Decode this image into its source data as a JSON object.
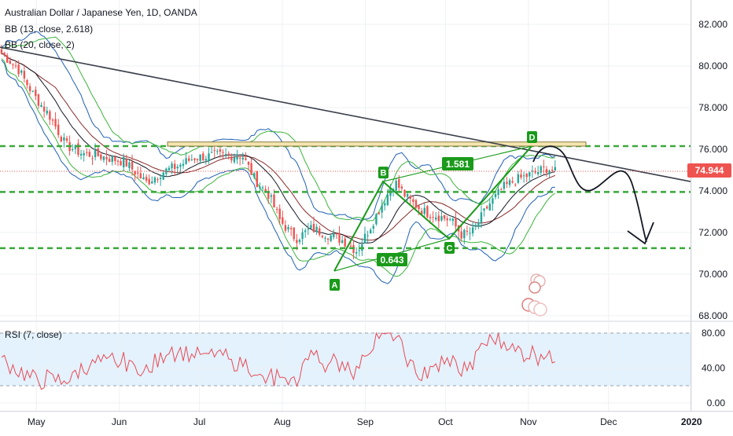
{
  "header": {
    "title": "Australian Dollar / Japanese Yen, 1D, OANDA",
    "bb1": "BB (13, close, 2.618)",
    "bb2": "BB (20, close, 2)"
  },
  "rsi": {
    "label": "RSI (7, close)"
  },
  "price": {
    "last": "74.944",
    "last_color": "#ef5350"
  },
  "colors": {
    "up": "#26a69a",
    "down": "#ef5350",
    "bb1_band": "#1e5fb4",
    "bb2_band": "#3cb43c",
    "basis": "#8a2a2a",
    "sma": "#131722",
    "pattern": "#1a9a1a",
    "level": "#3aa83a",
    "rsi_line": "#e84a55",
    "rsi_fill": "#e3f2fd"
  },
  "chart_data": {
    "type": "candlestick",
    "title": "Australian Dollar / Japanese Yen, 1D, OANDA",
    "price_axis": {
      "ylim": [
        67.8,
        82.4
      ],
      "ticks": [
        "82.000",
        "80.000",
        "78.000",
        "76.000",
        "74.000",
        "72.000",
        "70.000",
        "68.000"
      ]
    },
    "rsi_axis": {
      "ylim": [
        -3,
        82
      ],
      "ticks": [
        "80.00",
        "40.00",
        "0.00"
      ],
      "bands": [
        20,
        80
      ]
    },
    "time_axis": {
      "labels": [
        "May",
        "Jun",
        "Jul",
        "Aug",
        "Sep",
        "Oct",
        "Nov",
        "Dec",
        "2020"
      ]
    },
    "levels": [
      76.15,
      73.95,
      71.25
    ],
    "resistance_zone": {
      "from": 76.15,
      "to": 76.35
    },
    "last_price": 74.944,
    "pattern": {
      "points": [
        {
          "label": "A",
          "price": 70.15
        },
        {
          "label": "B",
          "price": 74.45
        },
        {
          "label": "C",
          "price": 71.7
        },
        {
          "label": "D",
          "price": 76.15
        }
      ],
      "ratios": [
        "0.643",
        "1.581"
      ]
    }
  }
}
